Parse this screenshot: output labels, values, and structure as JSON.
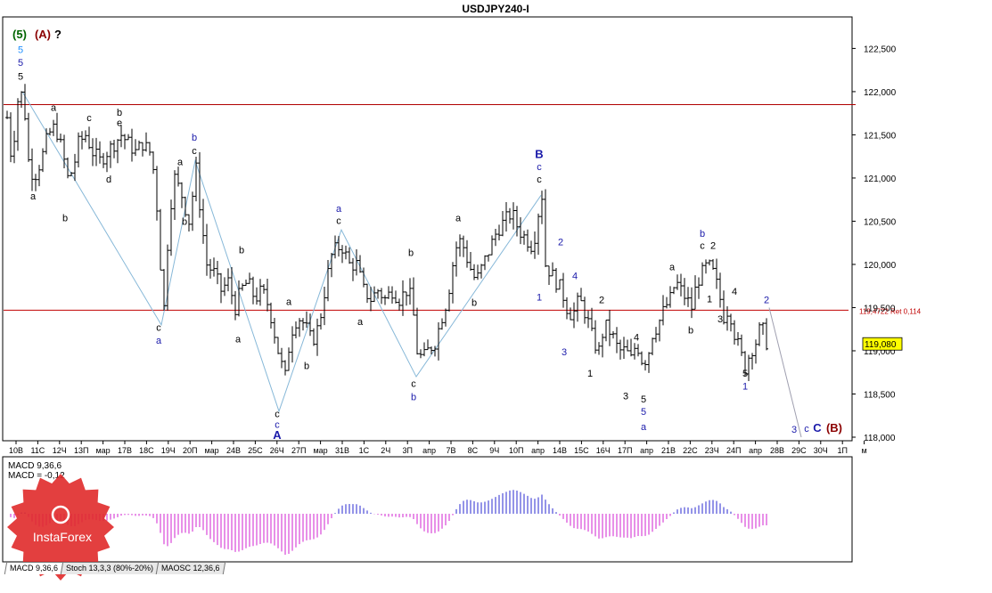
{
  "chart_data": {
    "type": "candlestick",
    "title": "USDJPY240-I",
    "symbol_price_label": "119,080",
    "price_axis": {
      "ylim": [
        118.0,
        122.7
      ],
      "ticks": [
        "122,500",
        "122,000",
        "121,500",
        "121,000",
        "120,500",
        "120,000",
        "119,500",
        "119,000",
        "118,500",
        "118,000"
      ]
    },
    "time_axis": {
      "ticks": [
        "10В",
        "11С",
        "12Ч",
        "13П",
        "мар",
        "17В",
        "18С",
        "19Ч",
        "20П",
        "мар",
        "24В",
        "25С",
        "26Ч",
        "27П",
        "мар",
        "31В",
        "1С",
        "2Ч",
        "3П",
        "апр",
        "7В",
        "8С",
        "9Ч",
        "10П",
        "апр",
        "14В",
        "15С",
        "16Ч",
        "17П",
        "апр",
        "21В",
        "22С",
        "23Ч",
        "24П",
        "апр",
        "28В",
        "29С",
        "30Ч",
        "1П",
        "м"
      ]
    },
    "price_path": [
      [
        0,
        121.7
      ],
      [
        5,
        121.2
      ],
      [
        12,
        121.9
      ],
      [
        18,
        122.0
      ],
      [
        24,
        121.2
      ],
      [
        30,
        121.0
      ],
      [
        38,
        121.2
      ],
      [
        46,
        121.5
      ],
      [
        54,
        121.6
      ],
      [
        62,
        121.3
      ],
      [
        68,
        121.0
      ],
      [
        74,
        121.1
      ],
      [
        80,
        121.4
      ],
      [
        88,
        121.5
      ],
      [
        96,
        121.3
      ],
      [
        104,
        121.2
      ],
      [
        112,
        121.3
      ],
      [
        120,
        121.4
      ],
      [
        128,
        121.5
      ],
      [
        136,
        121.4
      ],
      [
        144,
        121.3
      ],
      [
        152,
        121.4
      ],
      [
        160,
        121.3
      ],
      [
        166,
        121.0
      ],
      [
        172,
        120.0
      ],
      [
        176,
        119.5
      ],
      [
        182,
        120.6
      ],
      [
        188,
        121.0
      ],
      [
        196,
        120.8
      ],
      [
        204,
        120.5
      ],
      [
        212,
        121.1
      ],
      [
        218,
        120.5
      ],
      [
        224,
        120.0
      ],
      [
        232,
        119.9
      ],
      [
        240,
        119.7
      ],
      [
        248,
        119.8
      ],
      [
        256,
        119.5
      ],
      [
        262,
        119.7
      ],
      [
        270,
        119.8
      ],
      [
        278,
        119.6
      ],
      [
        286,
        119.7
      ],
      [
        294,
        119.5
      ],
      [
        300,
        119.2
      ],
      [
        306,
        118.9
      ],
      [
        312,
        118.7
      ],
      [
        318,
        119.2
      ],
      [
        326,
        119.4
      ],
      [
        334,
        119.3
      ],
      [
        342,
        119.1
      ],
      [
        350,
        119.3
      ],
      [
        358,
        119.8
      ],
      [
        364,
        120.1
      ],
      [
        370,
        120.2
      ],
      [
        376,
        120.2
      ],
      [
        384,
        120.0
      ],
      [
        392,
        120.0
      ],
      [
        400,
        119.7
      ],
      [
        408,
        119.6
      ],
      [
        416,
        119.7
      ],
      [
        424,
        119.6
      ],
      [
        432,
        119.7
      ],
      [
        440,
        119.6
      ],
      [
        448,
        119.7
      ],
      [
        454,
        119.6
      ],
      [
        460,
        119.0
      ],
      [
        466,
        118.9
      ],
      [
        472,
        119.0
      ],
      [
        480,
        119.1
      ],
      [
        488,
        119.4
      ],
      [
        494,
        119.6
      ],
      [
        500,
        120.0
      ],
      [
        506,
        120.3
      ],
      [
        512,
        120.2
      ],
      [
        518,
        120.0
      ],
      [
        526,
        119.8
      ],
      [
        534,
        120.0
      ],
      [
        542,
        120.2
      ],
      [
        550,
        120.4
      ],
      [
        558,
        120.5
      ],
      [
        566,
        120.6
      ],
      [
        574,
        120.4
      ],
      [
        582,
        120.3
      ],
      [
        590,
        120.2
      ],
      [
        596,
        120.6
      ],
      [
        600,
        120.8
      ],
      [
        604,
        120.0
      ],
      [
        610,
        119.9
      ],
      [
        616,
        119.8
      ],
      [
        622,
        119.7
      ],
      [
        628,
        119.5
      ],
      [
        634,
        119.4
      ],
      [
        642,
        119.6
      ],
      [
        650,
        119.4
      ],
      [
        658,
        119.1
      ],
      [
        664,
        119.0
      ],
      [
        670,
        119.3
      ],
      [
        678,
        119.2
      ],
      [
        686,
        119.0
      ],
      [
        694,
        119.0
      ],
      [
        700,
        118.9
      ],
      [
        706,
        119.1
      ],
      [
        712,
        118.9
      ],
      [
        718,
        118.9
      ],
      [
        724,
        119.2
      ],
      [
        730,
        119.3
      ],
      [
        738,
        119.5
      ],
      [
        744,
        119.6
      ],
      [
        750,
        119.8
      ],
      [
        756,
        119.7
      ],
      [
        762,
        119.6
      ],
      [
        768,
        119.5
      ],
      [
        774,
        119.8
      ],
      [
        780,
        119.9
      ],
      [
        786,
        120.0
      ],
      [
        792,
        119.9
      ],
      [
        798,
        119.7
      ],
      [
        804,
        119.4
      ],
      [
        810,
        119.5
      ],
      [
        816,
        119.2
      ],
      [
        822,
        119.0
      ],
      [
        828,
        118.8
      ],
      [
        834,
        119.0
      ],
      [
        840,
        119.1
      ],
      [
        846,
        119.3
      ],
      [
        852,
        119.1
      ]
    ],
    "wave_path": [
      [
        18,
        122.0
      ],
      [
        174,
        119.3
      ],
      [
        212,
        121.2
      ],
      [
        306,
        118.3
      ],
      [
        376,
        120.4
      ],
      [
        460,
        118.7
      ],
      [
        600,
        120.8
      ]
    ],
    "projection_path": [
      [
        856,
        119.5
      ],
      [
        892,
        118.0
      ]
    ],
    "levels": [
      {
        "price": 121.85,
        "label": "",
        "color": "#b00000"
      },
      {
        "price": 119.47,
        "label": "119,4722 Ret 0,114",
        "color": "#c00000"
      }
    ],
    "wave_labels": [
      {
        "text": "(5)",
        "x": 18,
        "price": 122.62,
        "color": "#006400"
      },
      {
        "text": "(A)",
        "x": 44,
        "price": 122.62,
        "color": "#8b0000"
      },
      {
        "text": "?",
        "x": 61,
        "price": 122.62,
        "color": "#000000"
      },
      {
        "text": "5",
        "x": 19,
        "price": 122.45,
        "color": "#1e90ff"
      },
      {
        "text": "5",
        "x": 19,
        "price": 122.3,
        "color": "#1a1aaa"
      },
      {
        "text": "5",
        "x": 19,
        "price": 122.14,
        "color": "#000000"
      },
      {
        "text": "a",
        "x": 56,
        "price": 121.78,
        "color": "#000000"
      },
      {
        "text": "a",
        "x": 33,
        "price": 120.75,
        "color": "#000000"
      },
      {
        "text": "b",
        "x": 69,
        "price": 120.5,
        "color": "#000000"
      },
      {
        "text": "c",
        "x": 96,
        "price": 121.66,
        "color": "#000000"
      },
      {
        "text": "d",
        "x": 118,
        "price": 120.95,
        "color": "#000000"
      },
      {
        "text": "b",
        "x": 130,
        "price": 121.72,
        "color": "#000000"
      },
      {
        "text": "e",
        "x": 130,
        "price": 121.6,
        "color": "#000000"
      },
      {
        "text": "b",
        "x": 214,
        "price": 121.43,
        "color": "#1a1aaa"
      },
      {
        "text": "c",
        "x": 214,
        "price": 121.28,
        "color": "#000000"
      },
      {
        "text": "a",
        "x": 198,
        "price": 121.15,
        "color": "#000000"
      },
      {
        "text": "b",
        "x": 203,
        "price": 120.46,
        "color": "#000000"
      },
      {
        "text": "c",
        "x": 174,
        "price": 119.23,
        "color": "#000000"
      },
      {
        "text": "a",
        "x": 174,
        "price": 119.08,
        "color": "#1a1aaa"
      },
      {
        "text": "b",
        "x": 267,
        "price": 120.13,
        "color": "#000000"
      },
      {
        "text": "a",
        "x": 263,
        "price": 119.1,
        "color": "#000000"
      },
      {
        "text": "a",
        "x": 320,
        "price": 119.53,
        "color": "#000000"
      },
      {
        "text": "b",
        "x": 340,
        "price": 118.79,
        "color": "#000000"
      },
      {
        "text": "c",
        "x": 307,
        "price": 118.23,
        "color": "#000000"
      },
      {
        "text": "c",
        "x": 307,
        "price": 118.11,
        "color": "#1a1aaa"
      },
      {
        "text": "A",
        "x": 307,
        "price": 117.98,
        "color": "#1a1aaa"
      },
      {
        "text": "a",
        "x": 376,
        "price": 120.61,
        "color": "#1a1aaa"
      },
      {
        "text": "c",
        "x": 376,
        "price": 120.47,
        "color": "#000000"
      },
      {
        "text": "a",
        "x": 400,
        "price": 119.3,
        "color": "#000000"
      },
      {
        "text": "b",
        "x": 457,
        "price": 120.1,
        "color": "#000000"
      },
      {
        "text": "c",
        "x": 460,
        "price": 118.58,
        "color": "#000000"
      },
      {
        "text": "b",
        "x": 460,
        "price": 118.43,
        "color": "#1a1aaa"
      },
      {
        "text": "a",
        "x": 510,
        "price": 120.5,
        "color": "#000000"
      },
      {
        "text": "b",
        "x": 528,
        "price": 119.52,
        "color": "#000000"
      },
      {
        "text": "B",
        "x": 601,
        "price": 121.23,
        "color": "#1a1aaa"
      },
      {
        "text": "c",
        "x": 601,
        "price": 121.09,
        "color": "#1a1aaa"
      },
      {
        "text": "c",
        "x": 601,
        "price": 120.95,
        "color": "#000000"
      },
      {
        "text": "2",
        "x": 625,
        "price": 120.22,
        "color": "#1a1aaa"
      },
      {
        "text": "1",
        "x": 601,
        "price": 119.58,
        "color": "#1a1aaa"
      },
      {
        "text": "4",
        "x": 641,
        "price": 119.83,
        "color": "#1a1aaa"
      },
      {
        "text": "3",
        "x": 629,
        "price": 118.95,
        "color": "#1a1aaa"
      },
      {
        "text": "2",
        "x": 671,
        "price": 119.55,
        "color": "#000000"
      },
      {
        "text": "1",
        "x": 658,
        "price": 118.7,
        "color": "#000000"
      },
      {
        "text": "4",
        "x": 710,
        "price": 119.12,
        "color": "#000000"
      },
      {
        "text": "3",
        "x": 698,
        "price": 118.44,
        "color": "#000000"
      },
      {
        "text": "5",
        "x": 718,
        "price": 118.4,
        "color": "#000000"
      },
      {
        "text": "5",
        "x": 718,
        "price": 118.26,
        "color": "#1a1aaa"
      },
      {
        "text": "a",
        "x": 718,
        "price": 118.08,
        "color": "#1a1aaa"
      },
      {
        "text": "a",
        "x": 750,
        "price": 119.93,
        "color": "#000000"
      },
      {
        "text": "b",
        "x": 771,
        "price": 119.2,
        "color": "#000000"
      },
      {
        "text": "b",
        "x": 784,
        "price": 120.32,
        "color": "#1a1aaa"
      },
      {
        "text": "c",
        "x": 784,
        "price": 120.18,
        "color": "#000000"
      },
      {
        "text": "2",
        "x": 796,
        "price": 120.18,
        "color": "#000000"
      },
      {
        "text": "1",
        "x": 792,
        "price": 119.56,
        "color": "#000000"
      },
      {
        "text": "3",
        "x": 804,
        "price": 119.33,
        "color": "#000000"
      },
      {
        "text": "4",
        "x": 820,
        "price": 119.65,
        "color": "#000000"
      },
      {
        "text": "5",
        "x": 832,
        "price": 118.7,
        "color": "#000000"
      },
      {
        "text": "1",
        "x": 832,
        "price": 118.55,
        "color": "#1a1aaa"
      },
      {
        "text": "2",
        "x": 856,
        "price": 119.55,
        "color": "#1a1aaa"
      },
      {
        "text": "3",
        "x": 887,
        "price": 118.05,
        "color": "#1a1aaa"
      },
      {
        "text": "c",
        "x": 901,
        "price": 118.06,
        "color": "#1a1aaa"
      },
      {
        "text": "C",
        "x": 913,
        "price": 118.06,
        "color": "#1a1aaa"
      },
      {
        "text": "(B)",
        "x": 932,
        "price": 118.06,
        "color": "#8b0000"
      }
    ],
    "macd": {
      "label": "MACD 9,36,6",
      "value_label": "MACD = -0,12",
      "histogram_color_positive": "#2a2ad0",
      "histogram_color_negative": "#d020d0"
    }
  },
  "tabs": [
    {
      "label": "MACD 9,36,6"
    },
    {
      "label": "Stoch 13,3,3 (80%-20%)"
    },
    {
      "label": "MAOSC 12,36,6"
    }
  ],
  "watermark": {
    "text": "InstaForex",
    "color": "#e02a2a"
  }
}
